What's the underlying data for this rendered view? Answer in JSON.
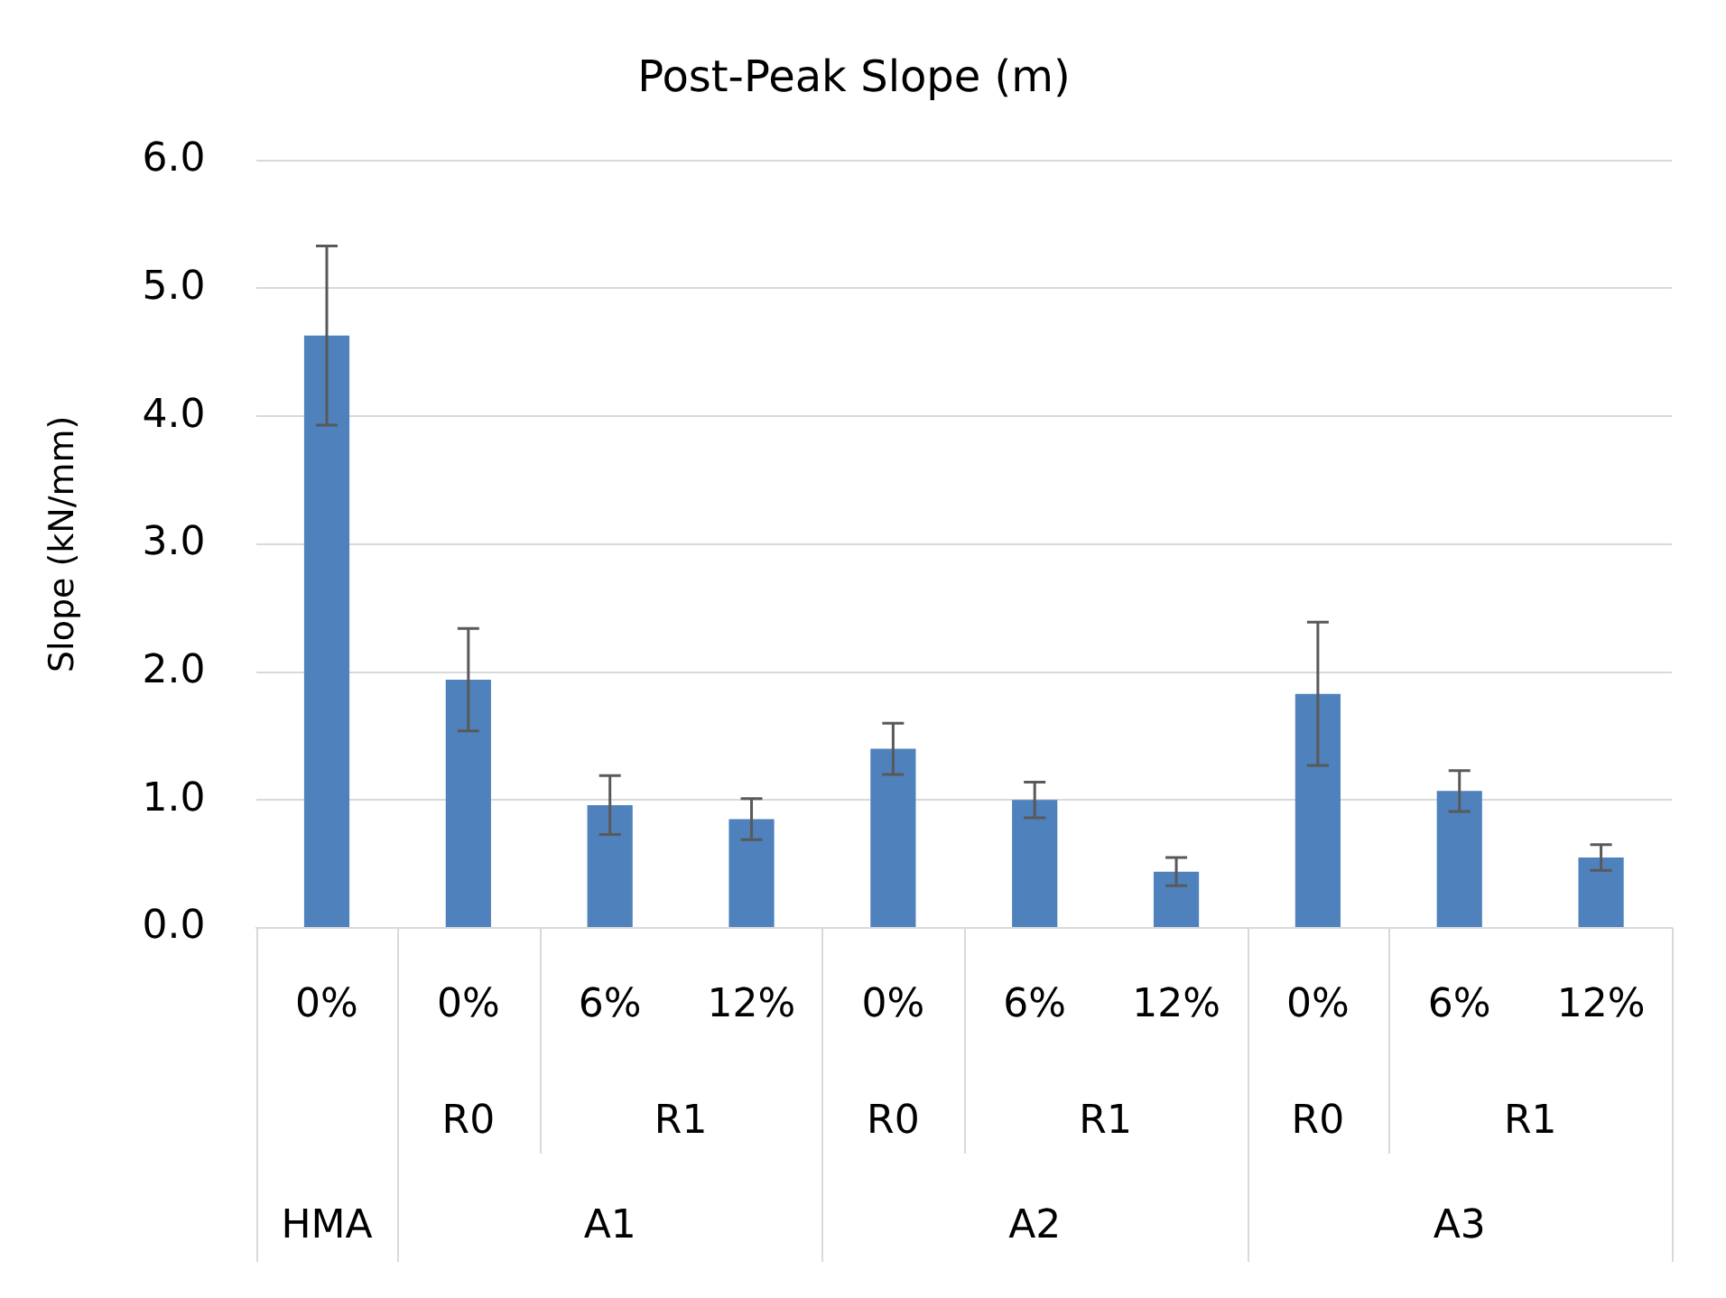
{
  "chart_data": {
    "type": "bar",
    "title": "Post-Peak Slope (m)",
    "ylabel": "Slope (kN/mm)",
    "categories": [
      "0%",
      "0%",
      "6%",
      "12%",
      "0%",
      "6%",
      "12%",
      "0%",
      "6%",
      "12%"
    ],
    "values": [
      4.63,
      1.94,
      0.96,
      0.85,
      1.4,
      1.0,
      0.44,
      1.83,
      1.07,
      0.55
    ],
    "errors": [
      0.7,
      0.4,
      0.23,
      0.16,
      0.2,
      0.14,
      0.11,
      0.56,
      0.16,
      0.1
    ],
    "color": "#4f81bd",
    "annotations": [
      "R0",
      "R1",
      "R0",
      "R1",
      "R0",
      "R1",
      "HMA",
      "A1",
      "A2",
      "A3"
    ],
    "ylim": [
      0,
      6
    ],
    "yticks": [
      {
        "value": 0,
        "label": "0.0"
      },
      {
        "value": 1,
        "label": "1.0"
      },
      {
        "value": 2,
        "label": "2.0"
      },
      {
        "value": 3,
        "label": "3.0"
      },
      {
        "value": 4,
        "label": "4.0"
      },
      {
        "value": 5,
        "label": "5.0"
      },
      {
        "value": 6,
        "label": "6.0"
      }
    ],
    "grid": "y"
  }
}
